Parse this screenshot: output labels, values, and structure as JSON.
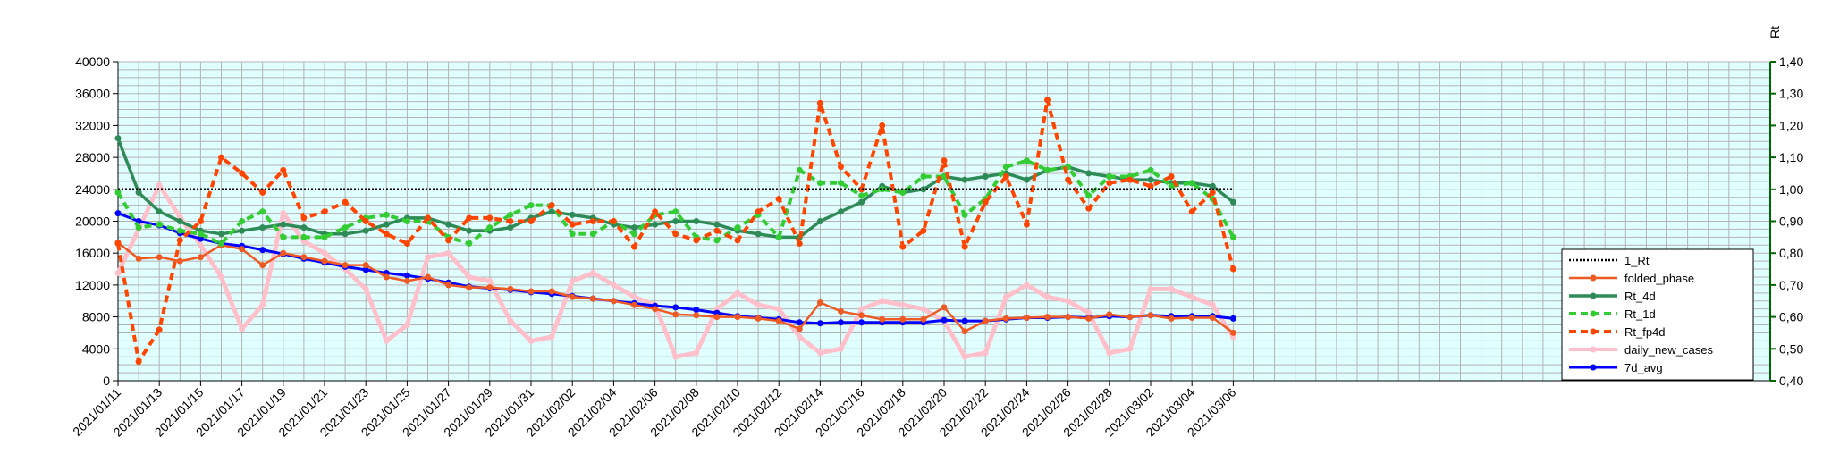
{
  "chart_data": {
    "type": "line",
    "title": "",
    "xlabel": "",
    "ylabel": "",
    "y2label": "Rt",
    "ylim": [
      0,
      40000
    ],
    "y2lim": [
      0.4,
      1.4
    ],
    "yticks": [
      "0",
      "4000",
      "8000",
      "12000",
      "16000",
      "20000",
      "24000",
      "28000",
      "32000",
      "36000",
      "40000"
    ],
    "y2ticks": [
      "0,40",
      "0,50",
      "0,60",
      "0,70",
      "0,80",
      "0,90",
      "1,00",
      "1,10",
      "1,20",
      "1,30",
      "1,40"
    ],
    "grid": true,
    "legend_position": "right",
    "x": [
      "2021/01/11",
      "2021/01/12",
      "2021/01/13",
      "2021/01/14",
      "2021/01/15",
      "2021/01/16",
      "2021/01/17",
      "2021/01/18",
      "2021/01/19",
      "2021/01/20",
      "2021/01/21",
      "2021/01/22",
      "2021/01/23",
      "2021/01/24",
      "2021/01/25",
      "2021/01/26",
      "2021/01/27",
      "2021/01/28",
      "2021/01/29",
      "2021/01/30",
      "2021/01/31",
      "2021/02/01",
      "2021/02/02",
      "2021/02/03",
      "2021/02/04",
      "2021/02/05",
      "2021/02/06",
      "2021/02/07",
      "2021/02/08",
      "2021/02/09",
      "2021/02/10",
      "2021/02/11",
      "2021/02/12",
      "2021/02/13",
      "2021/02/14",
      "2021/02/15",
      "2021/02/16",
      "2021/02/17",
      "2021/02/18",
      "2021/02/19",
      "2021/02/20",
      "2021/02/21",
      "2021/02/22",
      "2021/02/23",
      "2021/02/24",
      "2021/02/25",
      "2021/02/26",
      "2021/02/27",
      "2021/02/28",
      "2021/03/01",
      "2021/03/02",
      "2021/03/03",
      "2021/03/04",
      "2021/03/05",
      "2021/03/06"
    ],
    "x_tick_labels": [
      "2021/01/11",
      "2021/01/13",
      "2021/01/15",
      "2021/01/17",
      "2021/01/19",
      "2021/01/21",
      "2021/01/23",
      "2021/01/25",
      "2021/01/27",
      "2021/01/29",
      "2021/01/31",
      "2021/02/02",
      "2021/02/04",
      "2021/02/06",
      "2021/02/08",
      "2021/02/10",
      "2021/02/12",
      "2021/02/14",
      "2021/02/16",
      "2021/02/18",
      "2021/02/20",
      "2021/02/22",
      "2021/02/24",
      "2021/02/26",
      "2021/02/28",
      "2021/03/02",
      "2021/03/04",
      "2021/03/06"
    ],
    "series": [
      {
        "name": "1_Rt",
        "axis": "right",
        "color": "#000000",
        "style": "dotted",
        "marker": "none",
        "values": [
          1.0,
          1.0,
          1.0,
          1.0,
          1.0,
          1.0,
          1.0,
          1.0,
          1.0,
          1.0,
          1.0,
          1.0,
          1.0,
          1.0,
          1.0,
          1.0,
          1.0,
          1.0,
          1.0,
          1.0,
          1.0,
          1.0,
          1.0,
          1.0,
          1.0,
          1.0,
          1.0,
          1.0,
          1.0,
          1.0,
          1.0,
          1.0,
          1.0,
          1.0,
          1.0,
          1.0,
          1.0,
          1.0,
          1.0,
          1.0,
          1.0,
          1.0,
          1.0,
          1.0,
          1.0,
          1.0,
          1.0,
          1.0,
          1.0,
          1.0,
          1.0,
          1.0,
          1.0,
          1.0,
          1.0
        ]
      },
      {
        "name": "folded_phase",
        "axis": "left",
        "color": "#ee5a24",
        "style": "solid",
        "marker": "circle",
        "values": [
          17300,
          15300,
          15500,
          15000,
          15500,
          17000,
          16500,
          14500,
          16000,
          15500,
          15000,
          14500,
          14500,
          13000,
          12500,
          13000,
          12000,
          11700,
          11700,
          11500,
          11200,
          11200,
          10500,
          10300,
          10000,
          9500,
          9000,
          8300,
          8200,
          8000,
          8000,
          7800,
          7500,
          6500,
          9800,
          8700,
          8200,
          7700,
          7700,
          7700,
          9200,
          6200,
          7500,
          7800,
          7900,
          8000,
          8000,
          7800,
          8300,
          8000,
          8200,
          7800,
          7900,
          7900,
          6000
        ]
      },
      {
        "name": "Rt_4d",
        "axis": "right",
        "color": "#2e8b57",
        "style": "solid",
        "marker": "circle",
        "values": [
          1.16,
          0.99,
          0.93,
          0.9,
          0.87,
          0.86,
          0.87,
          0.88,
          0.89,
          0.88,
          0.86,
          0.86,
          0.87,
          0.89,
          0.91,
          0.91,
          0.89,
          0.87,
          0.87,
          0.88,
          0.91,
          0.93,
          0.92,
          0.91,
          0.89,
          0.88,
          0.89,
          0.9,
          0.9,
          0.89,
          0.87,
          0.86,
          0.85,
          0.85,
          0.9,
          0.93,
          0.96,
          1.01,
          0.99,
          1.0,
          1.04,
          1.03,
          1.04,
          1.05,
          1.03,
          1.06,
          1.07,
          1.05,
          1.04,
          1.03,
          1.03,
          1.02,
          1.02,
          1.01,
          0.96
        ]
      },
      {
        "name": "Rt_1d",
        "axis": "right",
        "color": "#33cc33",
        "style": "dashed",
        "marker": "circle",
        "values": [
          0.99,
          0.88,
          0.89,
          0.87,
          0.86,
          0.83,
          0.9,
          0.93,
          0.85,
          0.85,
          0.85,
          0.88,
          0.91,
          0.92,
          0.9,
          0.9,
          0.85,
          0.83,
          0.88,
          0.92,
          0.95,
          0.95,
          0.86,
          0.86,
          0.9,
          0.86,
          0.92,
          0.93,
          0.85,
          0.84,
          0.88,
          0.92,
          0.85,
          1.06,
          1.02,
          1.02,
          0.98,
          1.0,
          0.99,
          1.04,
          1.04,
          0.92,
          0.97,
          1.07,
          1.09,
          1.06,
          1.07,
          0.98,
          1.04,
          1.04,
          1.06,
          1.01,
          1.02,
          0.97,
          0.85
        ]
      },
      {
        "name": "Rt_fp4d",
        "axis": "right",
        "color": "#ff4500",
        "style": "dashed",
        "marker": "circle",
        "values": [
          0.83,
          0.46,
          0.56,
          0.84,
          0.9,
          1.1,
          1.05,
          0.99,
          1.06,
          0.91,
          0.93,
          0.96,
          0.9,
          0.86,
          0.83,
          0.91,
          0.84,
          0.91,
          0.91,
          0.9,
          0.9,
          0.95,
          0.89,
          0.9,
          0.9,
          0.82,
          0.93,
          0.86,
          0.84,
          0.87,
          0.84,
          0.93,
          0.97,
          0.83,
          1.27,
          1.07,
          1.0,
          1.2,
          0.82,
          0.87,
          1.09,
          0.82,
          0.96,
          1.04,
          0.89,
          1.28,
          1.03,
          0.94,
          1.02,
          1.03,
          1.01,
          1.04,
          0.93,
          0.99,
          0.75
        ]
      },
      {
        "name": "daily_new_cases",
        "axis": "left",
        "color": "#ffc0cb",
        "style": "solid",
        "marker": "circle",
        "values": [
          13500,
          19000,
          24500,
          20500,
          17000,
          13000,
          6500,
          9500,
          21000,
          17500,
          16000,
          14000,
          11500,
          5000,
          7000,
          15500,
          16000,
          13000,
          12500,
          7500,
          5000,
          5500,
          12500,
          13500,
          12000,
          10500,
          9500,
          3000,
          3500,
          9000,
          11000,
          9500,
          9000,
          5500,
          3500,
          4000,
          9000,
          10000,
          9500,
          9000,
          7500,
          3000,
          3500,
          10500,
          12000,
          10500,
          10000,
          8500,
          3500,
          4000,
          11500,
          11500,
          10500,
          9500,
          5500
        ]
      },
      {
        "name": "7d_avg",
        "axis": "left",
        "color": "#0000ff",
        "style": "solid",
        "marker": "circle",
        "values": [
          21000,
          20000,
          19500,
          18500,
          17800,
          17200,
          16900,
          16400,
          15900,
          15300,
          14800,
          14300,
          13900,
          13500,
          13200,
          12800,
          12300,
          11800,
          11600,
          11400,
          11100,
          10900,
          10600,
          10300,
          10000,
          9700,
          9400,
          9200,
          8900,
          8500,
          8100,
          7900,
          7700,
          7300,
          7200,
          7300,
          7300,
          7300,
          7300,
          7300,
          7600,
          7500,
          7500,
          7700,
          7900,
          7900,
          8000,
          7900,
          8100,
          8000,
          8200,
          8100,
          8100,
          8100,
          7800
        ]
      }
    ]
  }
}
